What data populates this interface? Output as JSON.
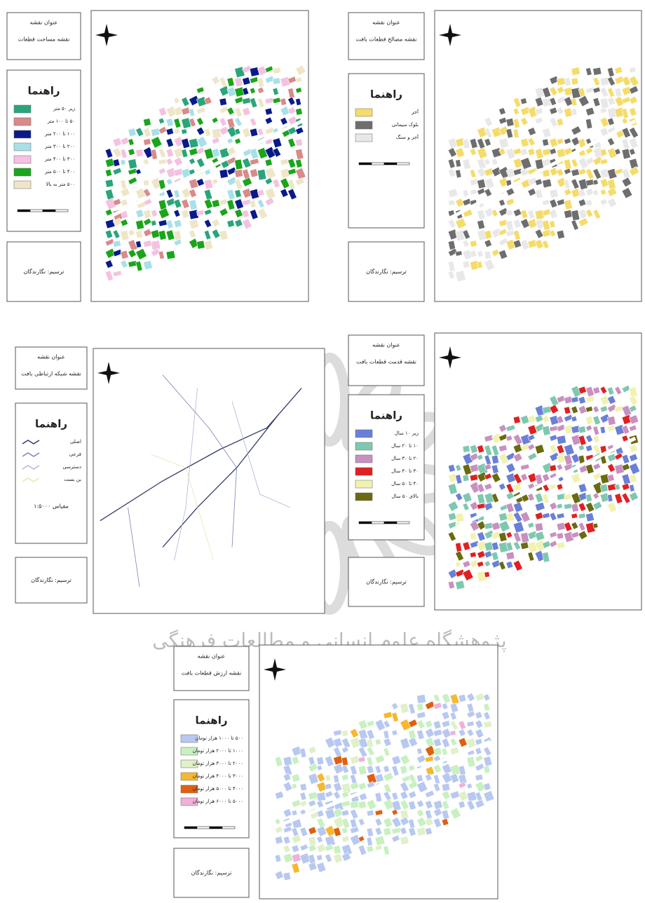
{
  "maps": [
    {
      "title_label": "عنوان نقشه",
      "title": "نقشه مساحت قطعات",
      "legend_title": "راهنما",
      "legend": [
        {
          "label": "زیر ۵۰ متر",
          "color": "#2aa57a"
        },
        {
          "label": "۵۰ تا ۱۰۰ متر",
          "color": "#d98a8a"
        },
        {
          "label": "۱۰۰ تا ۲۰۰ متر",
          "color": "#0a1a8a"
        },
        {
          "label": "۲۰۰ تا ۳۰۰ متر",
          "color": "#a8e0ea"
        },
        {
          "label": "۳۰۰ تا ۴۰۰ متر",
          "color": "#f4c2e0"
        },
        {
          "label": "۴۰۰ تا ۵۰۰ متر",
          "color": "#1aa51a"
        },
        {
          "label": "۵۰۰ متر به بالا",
          "color": "#efe6c8"
        }
      ],
      "credit": "ترسیم: نگارندگان"
    },
    {
      "title_label": "عنوان نقشه",
      "title": "نقشه مصالح قطعات بافت",
      "legend_title": "راهنما",
      "legend": [
        {
          "label": "آجر",
          "color": "#f5dc6a"
        },
        {
          "label": "بلوک سیمانی",
          "color": "#6e6e6e"
        },
        {
          "label": "آجر و سنگ",
          "color": "#e8e8e8"
        }
      ],
      "credit": "ترسیم: نگارندگان"
    },
    {
      "title_label": "عنوان نقشه",
      "title": "نقشه شبکه ارتباطی بافت",
      "legend_title": "راهنما",
      "legend": [
        {
          "label": "اصلی",
          "color": "#333a6a"
        },
        {
          "label": "فرعی",
          "color": "#7a82b8"
        },
        {
          "label": "دسترسی",
          "color": "#b0b4d8"
        },
        {
          "label": "بن بست",
          "color": "#e6e6b0"
        }
      ],
      "scale": "مقیاس ۱:۵۰۰۰",
      "credit": "ترسیم: نگارندگان"
    },
    {
      "title_label": "عنوان نقشه",
      "title": "نقشه قدمت قطعات بافت",
      "legend_title": "راهنما",
      "legend": [
        {
          "label": "زیر ۱۰ سال",
          "color": "#6a80d8"
        },
        {
          "label": "۱۰ تا ۲۰ سال",
          "color": "#7fc8b0"
        },
        {
          "label": "۲۰ تا ۳۰ سال",
          "color": "#c890c0"
        },
        {
          "label": "۳۰ تا ۴۰ سال",
          "color": "#e02020"
        },
        {
          "label": "۴۰ تا ۵۰ سال",
          "color": "#f2f2b0"
        },
        {
          "label": "بالای ۵۰ سال",
          "color": "#6a6a10"
        }
      ],
      "credit": "ترسیم: نگارندگان"
    },
    {
      "title_label": "عنوان نقشه",
      "title": "نقشه ارزش قطعات بافت",
      "legend_title": "راهنما",
      "legend": [
        {
          "label": "۵۰۰ تا ۱۰۰۰ هزار تومان",
          "color": "#b8c8f0"
        },
        {
          "label": "۱۰۰۰ تا ۲۰۰۰ هزار تومان",
          "color": "#c8f0c0"
        },
        {
          "label": "۲۰۰۰ تا ۳۰۰۰ هزار تومان",
          "color": "#e0f0c8"
        },
        {
          "label": "۳۰۰۰ تا ۴۰۰۰ هزار تومان",
          "color": "#f5b830"
        },
        {
          "label": "۴۰۰۰ تا ۵۰۰۰ هزار تومان",
          "color": "#e06010"
        },
        {
          "label": "۵۰۰۰ تا ۶۰۰۰ هزار تومان",
          "color": "#f0b0d8"
        }
      ],
      "credit": "ترسیم: نگارندگان"
    }
  ],
  "watermark": "پژوهشگاه علوم انسانی و مطالعات فرهنگی"
}
